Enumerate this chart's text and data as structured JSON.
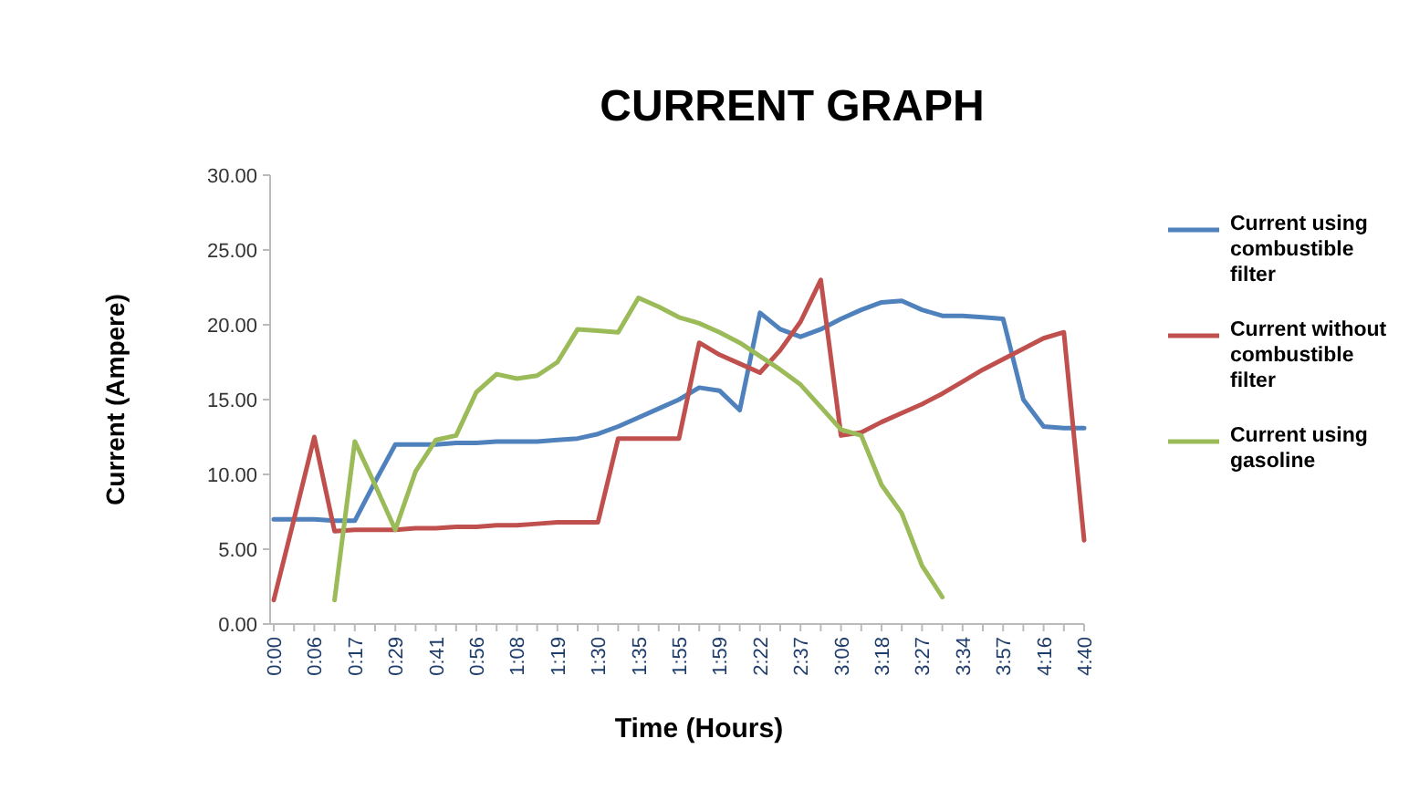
{
  "chart_data": {
    "type": "line",
    "title": "CURRENT GRAPH",
    "xlabel": "Time (Hours)",
    "ylabel": "Current (Ampere)",
    "categories": [
      "0:00",
      null,
      "0:06",
      null,
      "0:17",
      null,
      "0:29",
      null,
      "0:41",
      null,
      "0:56",
      null,
      "1:08",
      null,
      "1:19",
      null,
      "1:30",
      null,
      "1:35",
      null,
      "1:55",
      null,
      "1:59",
      null,
      "2:22",
      null,
      "2:37",
      null,
      "3:06",
      null,
      "3:18",
      null,
      "3:27",
      null,
      "3:34",
      null,
      "3:57",
      null,
      "4:16",
      null,
      "4:40"
    ],
    "series": [
      {
        "name": "Current using combustible filter",
        "color": "#4f81bd",
        "values": [
          7.0,
          7.0,
          7.0,
          6.9,
          6.9,
          9.5,
          12.0,
          12.0,
          12.0,
          12.1,
          12.1,
          12.2,
          12.2,
          12.2,
          12.3,
          12.4,
          12.7,
          13.2,
          13.8,
          14.4,
          15.0,
          15.8,
          15.6,
          14.3,
          20.8,
          19.7,
          19.2,
          19.7,
          20.4,
          21.0,
          21.5,
          21.6,
          21.0,
          20.6,
          20.6,
          20.5,
          20.4,
          15.0,
          13.2,
          13.1,
          13.1
        ]
      },
      {
        "name": "Current without combustible filter",
        "color": "#c0504d",
        "values": [
          1.6,
          7.0,
          12.5,
          6.2,
          6.3,
          6.3,
          6.3,
          6.4,
          6.4,
          6.5,
          6.5,
          6.6,
          6.6,
          6.7,
          6.8,
          6.8,
          6.8,
          12.4,
          12.4,
          12.4,
          12.4,
          18.8,
          18.0,
          17.4,
          16.8,
          18.3,
          20.2,
          23.0,
          12.6,
          12.8,
          13.5,
          14.1,
          14.7,
          15.4,
          16.2,
          17.0,
          17.7,
          18.4,
          19.1,
          19.5,
          5.6
        ]
      },
      {
        "name": "Current using gasoline",
        "color": "#9bbb59",
        "values": [
          null,
          null,
          null,
          1.6,
          12.2,
          9.3,
          6.3,
          10.2,
          12.3,
          12.6,
          15.5,
          16.7,
          16.4,
          16.6,
          17.5,
          19.7,
          19.6,
          19.5,
          21.8,
          21.2,
          20.5,
          20.1,
          19.5,
          18.8,
          17.9,
          17.0,
          16.0,
          14.5,
          13.0,
          12.6,
          9.3,
          7.4,
          3.9,
          1.8,
          null,
          null,
          null,
          null,
          null,
          null,
          null
        ]
      }
    ],
    "ylim": [
      0,
      30
    ],
    "yticks": [
      {
        "value": 0,
        "label": "0.00"
      },
      {
        "value": 5,
        "label": "5.00"
      },
      {
        "value": 10,
        "label": "10.00"
      },
      {
        "value": 15,
        "label": "15.00"
      },
      {
        "value": 20,
        "label": "20.00"
      },
      {
        "value": 25,
        "label": "25.00"
      },
      {
        "value": 30,
        "label": "30.00"
      }
    ],
    "legend": "right",
    "line_style": "solid"
  }
}
